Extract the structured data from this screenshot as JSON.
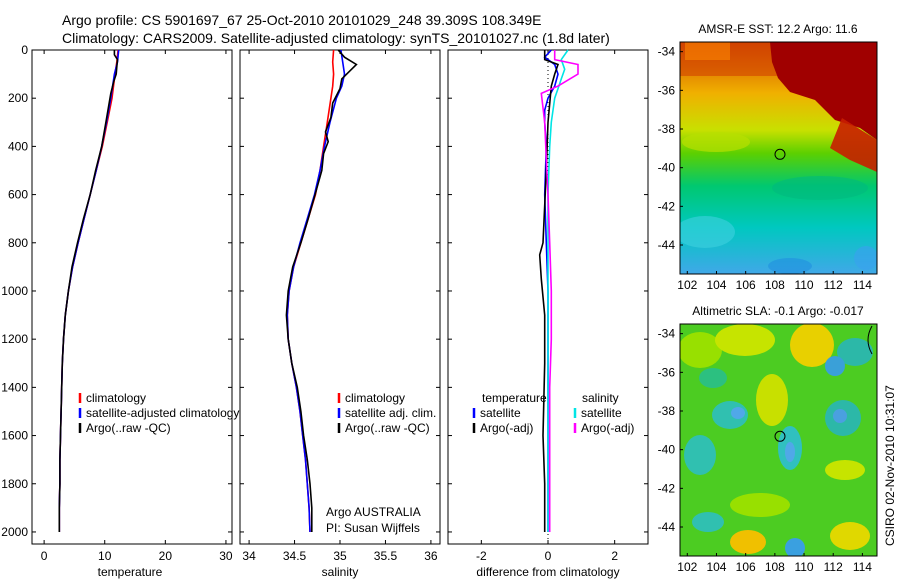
{
  "header": {
    "line1": "Argo profile: CS 5901697_67 25-Oct-2010 20101029_248 39.309S 108.349E",
    "line2": "Climatology: CARS2009. Satellite-adjusted climatology: synTS_20101027.nc (1.8d later)"
  },
  "side_label": "CSIRO 02-Nov-2010 10:31:07",
  "colors": {
    "clim": "#ff0000",
    "sat": "#0000ff",
    "argo": "#000000",
    "sat_diff_s": "#00e5e5",
    "argo_diff_s": "#ff00ff"
  },
  "chart_data": [
    {
      "type": "line",
      "xlabel": "temperature",
      "ylabel": "",
      "xlim": [
        -2,
        31
      ],
      "ylim": [
        0,
        2050
      ],
      "x_ticks": [
        "0",
        "10",
        "20",
        "30"
      ],
      "y_ticks": [
        "0",
        "200",
        "400",
        "600",
        "800",
        "1000",
        "1200",
        "1400",
        "1600",
        "1800",
        "2000"
      ],
      "legend": [
        "climatology",
        "satellite-adjusted climatology",
        "Argo(..raw -QC)"
      ],
      "series": [
        {
          "name": "climatology",
          "color": "#ff0000",
          "points": [
            [
              12.2,
              0
            ],
            [
              12.0,
              50
            ],
            [
              11.7,
              100
            ],
            [
              11.2,
              200
            ],
            [
              10.4,
              300
            ],
            [
              9.6,
              400
            ],
            [
              8.6,
              500
            ],
            [
              7.6,
              600
            ],
            [
              6.6,
              700
            ],
            [
              5.6,
              800
            ],
            [
              4.7,
              900
            ],
            [
              4.0,
              1000
            ],
            [
              3.5,
              1100
            ],
            [
              3.2,
              1200
            ],
            [
              3.0,
              1300
            ],
            [
              2.9,
              1400
            ],
            [
              2.8,
              1500
            ],
            [
              2.7,
              1600
            ],
            [
              2.6,
              1700
            ],
            [
              2.6,
              1800
            ],
            [
              2.5,
              1900
            ],
            [
              2.5,
              2000
            ]
          ]
        },
        {
          "name": "satellite-adjusted climatology",
          "color": "#0000ff",
          "points": [
            [
              12.3,
              0
            ],
            [
              12.1,
              50
            ],
            [
              11.6,
              100
            ],
            [
              11.0,
              200
            ],
            [
              10.3,
              300
            ],
            [
              9.5,
              400
            ],
            [
              8.6,
              500
            ],
            [
              7.6,
              600
            ],
            [
              6.6,
              700
            ],
            [
              5.6,
              800
            ],
            [
              4.7,
              900
            ],
            [
              4.0,
              1000
            ],
            [
              3.5,
              1100
            ],
            [
              3.2,
              1200
            ],
            [
              3.0,
              1300
            ],
            [
              2.9,
              1400
            ],
            [
              2.8,
              1500
            ],
            [
              2.7,
              1600
            ],
            [
              2.6,
              1700
            ],
            [
              2.6,
              1800
            ],
            [
              2.5,
              1900
            ],
            [
              2.5,
              2000
            ]
          ]
        },
        {
          "name": "Argo(..raw -QC)",
          "color": "#000000",
          "points": [
            [
              11.6,
              0
            ],
            [
              11.6,
              20
            ],
            [
              12.1,
              40
            ],
            [
              12.0,
              70
            ],
            [
              11.9,
              100
            ],
            [
              11.5,
              130
            ],
            [
              11.0,
              180
            ],
            [
              10.2,
              300
            ],
            [
              9.5,
              400
            ],
            [
              8.5,
              500
            ],
            [
              7.6,
              600
            ],
            [
              6.5,
              700
            ],
            [
              5.5,
              800
            ],
            [
              4.6,
              900
            ],
            [
              4.0,
              1000
            ],
            [
              3.5,
              1100
            ],
            [
              3.2,
              1200
            ],
            [
              3.0,
              1300
            ],
            [
              2.9,
              1400
            ],
            [
              2.8,
              1500
            ],
            [
              2.7,
              1600
            ],
            [
              2.6,
              1700
            ],
            [
              2.6,
              1800
            ],
            [
              2.5,
              1900
            ],
            [
              2.5,
              2000
            ]
          ]
        }
      ]
    },
    {
      "type": "line",
      "xlabel": "salinity",
      "xlim": [
        33.9,
        36.1
      ],
      "ylim": [
        0,
        2050
      ],
      "x_ticks": [
        "34",
        "34.5",
        "35",
        "35.5",
        "36"
      ],
      "legend": [
        "climatology",
        "satellite adj. clim.",
        "Argo(..raw -QC)"
      ],
      "annotation": [
        "Argo AUSTRALIA",
        "PI: Susan Wijffels"
      ],
      "series": [
        {
          "name": "climatology",
          "color": "#ff0000",
          "points": [
            [
              34.93,
              0
            ],
            [
              34.92,
              50
            ],
            [
              34.93,
              100
            ],
            [
              34.92,
              150
            ],
            [
              34.9,
              200
            ],
            [
              34.86,
              300
            ],
            [
              34.82,
              400
            ],
            [
              34.78,
              500
            ],
            [
              34.73,
              600
            ],
            [
              34.65,
              700
            ],
            [
              34.57,
              800
            ],
            [
              34.49,
              900
            ],
            [
              34.44,
              1000
            ],
            [
              34.42,
              1100
            ],
            [
              34.43,
              1200
            ],
            [
              34.47,
              1300
            ],
            [
              34.52,
              1400
            ],
            [
              34.56,
              1500
            ],
            [
              34.59,
              1600
            ],
            [
              34.62,
              1700
            ],
            [
              34.64,
              1800
            ],
            [
              34.66,
              1900
            ],
            [
              34.67,
              2000
            ]
          ]
        },
        {
          "name": "satellite adj. clim.",
          "color": "#0000ff",
          "points": [
            [
              35.01,
              0
            ],
            [
              35.03,
              50
            ],
            [
              35.05,
              100
            ],
            [
              35.02,
              150
            ],
            [
              34.96,
              200
            ],
            [
              34.89,
              300
            ],
            [
              34.83,
              400
            ],
            [
              34.78,
              500
            ],
            [
              34.72,
              600
            ],
            [
              34.64,
              700
            ],
            [
              34.56,
              800
            ],
            [
              34.49,
              900
            ],
            [
              34.44,
              1000
            ],
            [
              34.42,
              1100
            ],
            [
              34.43,
              1200
            ],
            [
              34.47,
              1300
            ],
            [
              34.52,
              1400
            ],
            [
              34.56,
              1500
            ],
            [
              34.59,
              1600
            ],
            [
              34.62,
              1700
            ],
            [
              34.64,
              1800
            ],
            [
              34.66,
              1900
            ],
            [
              34.67,
              2000
            ]
          ]
        },
        {
          "name": "Argo(..raw -QC)",
          "color": "#000000",
          "points": [
            [
              34.98,
              0
            ],
            [
              35.05,
              30
            ],
            [
              35.18,
              60
            ],
            [
              35.1,
              90
            ],
            [
              35.02,
              120
            ],
            [
              35.0,
              160
            ],
            [
              34.92,
              220
            ],
            [
              34.9,
              280
            ],
            [
              34.84,
              340
            ],
            [
              34.87,
              380
            ],
            [
              34.82,
              430
            ],
            [
              34.8,
              500
            ],
            [
              34.74,
              580
            ],
            [
              34.65,
              700
            ],
            [
              34.57,
              800
            ],
            [
              34.48,
              900
            ],
            [
              34.43,
              1000
            ],
            [
              34.41,
              1100
            ],
            [
              34.43,
              1200
            ],
            [
              34.47,
              1300
            ],
            [
              34.53,
              1400
            ],
            [
              34.57,
              1500
            ],
            [
              34.6,
              1600
            ],
            [
              34.64,
              1700
            ],
            [
              34.67,
              1800
            ],
            [
              34.69,
              1900
            ],
            [
              34.69,
              2000
            ]
          ]
        }
      ]
    },
    {
      "type": "line",
      "xlabel": "difference from climatology",
      "xlim": [
        -3,
        3
      ],
      "ylim": [
        0,
        2050
      ],
      "x_ticks": [
        "-2",
        "0",
        "2"
      ],
      "legend": [
        "temperature",
        "satellite",
        "Argo(-adj)",
        "salinity",
        "satellite",
        "Argo(-adj)"
      ],
      "series": [
        {
          "name": "satellite",
          "color": "#0000ff",
          "points": [
            [
              0.1,
              0
            ],
            [
              -0.1,
              30
            ],
            [
              0.2,
              60
            ],
            [
              0.3,
              100
            ],
            [
              0.2,
              150
            ],
            [
              0.0,
              200
            ],
            [
              -0.1,
              250
            ],
            [
              -0.1,
              300
            ],
            [
              -0.05,
              400
            ],
            [
              -0.1,
              600
            ],
            [
              -0.05,
              800
            ],
            [
              0.0,
              1000
            ],
            [
              0.0,
              2000
            ]
          ]
        },
        {
          "name": "Argo(-adj)",
          "color": "#000000",
          "points": [
            [
              -0.1,
              0
            ],
            [
              -0.1,
              40
            ],
            [
              0.3,
              60
            ],
            [
              0.2,
              100
            ],
            [
              0.1,
              150
            ],
            [
              0.0,
              300
            ],
            [
              -0.05,
              500
            ],
            [
              -0.15,
              800
            ],
            [
              -0.25,
              850
            ],
            [
              -0.2,
              950
            ],
            [
              -0.1,
              1100
            ],
            [
              -0.1,
              1300
            ],
            [
              -0.15,
              1600
            ],
            [
              -0.1,
              1800
            ],
            [
              -0.1,
              2000
            ]
          ]
        },
        {
          "name": "satellite",
          "color": "#00e5e5",
          "points": [
            [
              0.6,
              0
            ],
            [
              0.4,
              40
            ],
            [
              0.5,
              80
            ],
            [
              0.4,
              120
            ],
            [
              0.3,
              160
            ],
            [
              0.2,
              200
            ],
            [
              0.1,
              300
            ],
            [
              0.05,
              400
            ],
            [
              0.0,
              600
            ],
            [
              0.0,
              1000
            ],
            [
              0.0,
              2000
            ]
          ]
        },
        {
          "name": "Argo(-adj)",
          "color": "#ff00ff",
          "points": [
            [
              0.2,
              0
            ],
            [
              0.2,
              40
            ],
            [
              0.9,
              60
            ],
            [
              0.9,
              100
            ],
            [
              0.3,
              150
            ],
            [
              -0.2,
              180
            ],
            [
              -0.1,
              300
            ],
            [
              -0.05,
              450
            ],
            [
              0.0,
              600
            ],
            [
              0.05,
              800
            ],
            [
              0.1,
              1000
            ],
            [
              0.1,
              1200
            ],
            [
              0.05,
              1400
            ],
            [
              0.05,
              2000
            ]
          ]
        }
      ]
    },
    {
      "type": "heatmap",
      "title": "AMSR-E SST: 12.2 Argo: 11.6",
      "xlim": [
        101.5,
        115
      ],
      "ylim": [
        -45.5,
        -33.5
      ],
      "x_ticks": [
        "102",
        "104",
        "106",
        "108",
        "110",
        "112",
        "114"
      ],
      "y_ticks": [
        "-34",
        "-36",
        "-38",
        "-40",
        "-42",
        "-44"
      ],
      "marker": [
        108.35,
        -39.31
      ]
    },
    {
      "type": "heatmap",
      "title": "Altimetric SLA: -0.1 Argo: -0.017",
      "xlim": [
        101.5,
        115
      ],
      "ylim": [
        -45.5,
        -33.5
      ],
      "x_ticks": [
        "102",
        "104",
        "106",
        "108",
        "110",
        "112",
        "114"
      ],
      "y_ticks": [
        "-34",
        "-36",
        "-38",
        "-40",
        "-42",
        "-44"
      ],
      "marker": [
        108.35,
        -39.31
      ]
    }
  ]
}
